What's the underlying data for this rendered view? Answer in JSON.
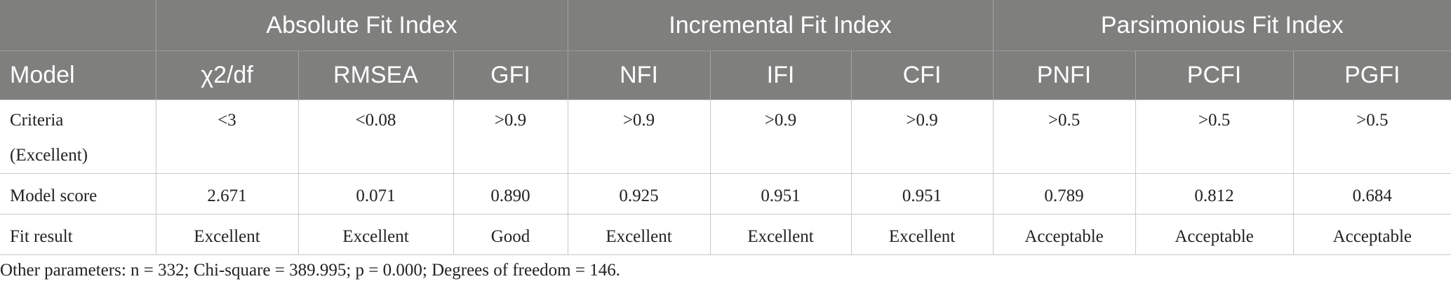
{
  "table": {
    "group_headers": [
      "Absolute Fit Index",
      "Incremental Fit Index",
      "Parsimonious Fit Index"
    ],
    "columns": [
      "Model",
      "χ2/df",
      "RMSEA",
      "GFI",
      "NFI",
      "IFI",
      "CFI",
      "PNFI",
      "PCFI",
      "PGFI"
    ],
    "rows": [
      [
        "Criteria\n(Excellent)",
        "<3",
        "<0.08",
        ">0.9",
        ">0.9",
        ">0.9",
        ">0.9",
        ">0.5",
        ">0.5",
        ">0.5"
      ],
      [
        "Model score",
        "2.671",
        "0.071",
        "0.890",
        "0.925",
        "0.951",
        "0.951",
        "0.789",
        "0.812",
        "0.684"
      ],
      [
        "Fit result",
        "Excellent",
        "Excellent",
        "Good",
        "Excellent",
        "Excellent",
        "Excellent",
        "Acceptable",
        "Acceptable",
        "Acceptable"
      ]
    ],
    "note": "Other parameters: n = 332; Chi-square = 389.995; p = 0.000; Degrees of freedom = 146."
  }
}
